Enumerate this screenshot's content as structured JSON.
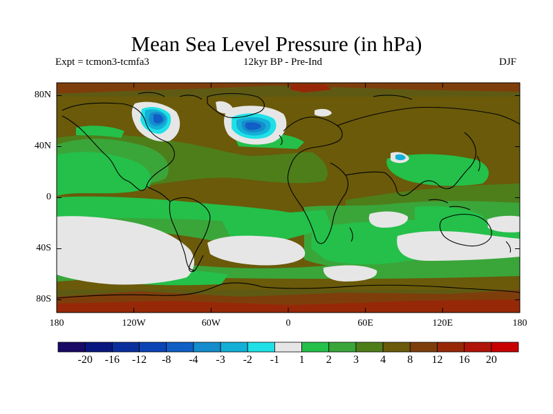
{
  "title": "Mean Sea Level Pressure (in hPa)",
  "subtitle_left": "Expt = tcmon3-tcmfa3",
  "subtitle_center": "12kyr BP - Pre-Ind",
  "subtitle_right": "DJF",
  "lat_ticks": [
    "80N",
    "40N",
    "0",
    "40S",
    "80S"
  ],
  "lon_ticks": [
    "180",
    "120W",
    "60W",
    "0",
    "60E",
    "120E",
    "180"
  ],
  "colorbar": {
    "colors": [
      "#1a0a66",
      "#08177f",
      "#0a2e9c",
      "#0b44b4",
      "#0f5fc4",
      "#158ccc",
      "#13afd7",
      "#1fe0e6",
      "#e6e6e6",
      "#24c04a",
      "#3aa63a",
      "#4e7e1a",
      "#6a5a0a",
      "#7e3e0c",
      "#962808",
      "#b01408",
      "#c80000"
    ],
    "labels": [
      "-20",
      "-16",
      "-12",
      "-8",
      "-4",
      "-3",
      "-2",
      "-1",
      "1",
      "2",
      "3",
      "4",
      "8",
      "12",
      "16",
      "20"
    ]
  },
  "map_colors": {
    "background": "#5e5a14",
    "light_green": "#24c04a",
    "mid_green": "#3aa63a",
    "olive": "#4e7e1a",
    "brown": "#6a5a0a",
    "red_brown": "#7e3e0c",
    "dark_red": "#962808",
    "neutral": "#e6e6e6",
    "cyan": "#1fe0e6",
    "light_blue": "#13afd7",
    "blue": "#158ccc",
    "deep_blue": "#0f5fc4"
  }
}
